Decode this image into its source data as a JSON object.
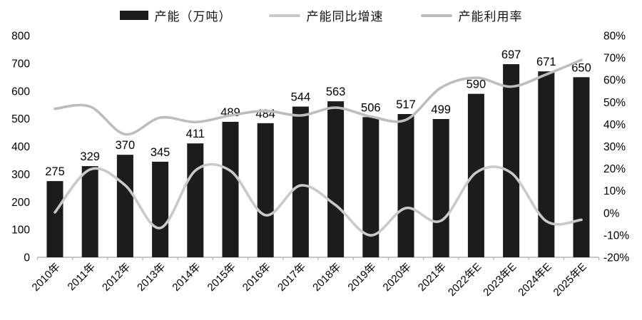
{
  "chart_data": {
    "type": "bar",
    "combo": "bar+two-lines",
    "title": "",
    "categories": [
      "2010年",
      "2011年",
      "2012年",
      "2013年",
      "2014年",
      "2015年",
      "2016年",
      "2017年",
      "2018年",
      "2019年",
      "2020年",
      "2021年",
      "2022年E",
      "2023年E",
      "2024年E",
      "2025年E"
    ],
    "series": [
      {
        "name": "产能（万吨）",
        "type": "bar",
        "axis": "left",
        "color": "#1c1c1c",
        "values": [
          275,
          329,
          370,
          345,
          411,
          489,
          484,
          544,
          563,
          506,
          517,
          499,
          590,
          697,
          671,
          650
        ]
      },
      {
        "name": "产能同比增速",
        "type": "line",
        "axis": "right",
        "color": "#c9c9c9",
        "values": [
          0.3,
          19.6,
          12.5,
          -6.8,
          19.1,
          19.0,
          -1.0,
          12.4,
          3.5,
          -10.1,
          2.2,
          -3.5,
          18.2,
          18.1,
          -3.7,
          -3.1
        ]
      },
      {
        "name": "产能利用率",
        "type": "line",
        "axis": "right",
        "color": "#bdbdbd",
        "values": [
          47,
          48,
          35.5,
          43,
          41,
          44,
          46,
          44,
          47.5,
          43.5,
          42,
          56.5,
          61,
          57,
          62.5,
          69
        ]
      }
    ],
    "left_axis": {
      "min": 0,
      "max": 800,
      "step": 100,
      "ticks": [
        "800",
        "700",
        "600",
        "500",
        "400",
        "300",
        "200",
        "100",
        "0"
      ]
    },
    "right_axis": {
      "min": -20,
      "max": 80,
      "step": 10,
      "ticks": [
        "80%",
        "70%",
        "60%",
        "50%",
        "40%",
        "30%",
        "20%",
        "10%",
        "0%",
        "-10%",
        "-20%"
      ]
    },
    "bar_labels_shown": true,
    "grid": "off",
    "legend_position": "top",
    "colors": {
      "axis_line": "#b3b3b3",
      "tick_text": "#000000",
      "label_text": "#000000"
    }
  }
}
